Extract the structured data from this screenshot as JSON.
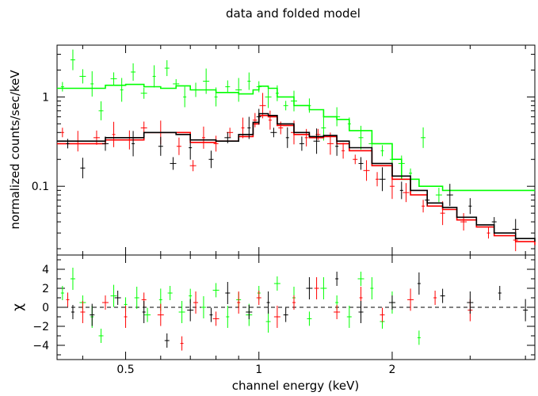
{
  "chart_data": [
    {
      "type": "scatter",
      "title": "data and folded model",
      "ylabel": "normalized counts/sec/keV",
      "xlabel": "",
      "x_scale": "log",
      "y_scale": "log",
      "xlim": [
        0.35,
        4.2
      ],
      "ylim": [
        0.017,
        3.8
      ],
      "y_ticks": [
        {
          "value": 0.1,
          "label": "0.1"
        },
        {
          "value": 1,
          "label": "1"
        }
      ],
      "colors": {
        "black": "#000000",
        "red": "#ff0000",
        "green": "#00ff00"
      },
      "series": [
        {
          "color": "#00ff00",
          "model_x": [
            0.35,
            0.45,
            0.5,
            0.55,
            0.6,
            0.65,
            0.7,
            0.8,
            0.9,
            0.97,
            1.0,
            1.05,
            1.1,
            1.2,
            1.3,
            1.4,
            1.5,
            1.6,
            1.8,
            2.0,
            2.1,
            2.3,
            2.6
          ],
          "model_y": [
            1.25,
            1.35,
            1.38,
            1.3,
            1.25,
            1.33,
            1.2,
            1.12,
            1.08,
            1.2,
            1.32,
            1.25,
            1.0,
            0.8,
            0.72,
            0.6,
            0.56,
            0.42,
            0.3,
            0.2,
            0.12,
            0.1,
            0.09
          ],
          "points": [
            [
              0.36,
              1.3
            ],
            [
              0.38,
              2.6
            ],
            [
              0.4,
              1.7
            ],
            [
              0.42,
              1.4
            ],
            [
              0.44,
              0.7
            ],
            [
              0.47,
              1.6
            ],
            [
              0.49,
              1.2
            ],
            [
              0.52,
              1.9
            ],
            [
              0.55,
              1.1
            ],
            [
              0.58,
              1.7
            ],
            [
              0.62,
              2.1
            ],
            [
              0.65,
              1.4
            ],
            [
              0.68,
              1.0
            ],
            [
              0.72,
              1.2
            ],
            [
              0.76,
              1.5
            ],
            [
              0.8,
              1.0
            ],
            [
              0.85,
              1.3
            ],
            [
              0.9,
              1.2
            ],
            [
              0.95,
              1.5
            ],
            [
              1.0,
              1.3
            ],
            [
              1.05,
              1.0
            ],
            [
              1.1,
              1.1
            ],
            [
              1.15,
              0.8
            ],
            [
              1.2,
              0.9
            ],
            [
              1.3,
              0.8
            ],
            [
              1.4,
              0.45
            ],
            [
              1.5,
              0.6
            ],
            [
              1.6,
              0.5
            ],
            [
              1.7,
              0.35
            ],
            [
              1.8,
              0.3
            ],
            [
              1.9,
              0.25
            ],
            [
              2.0,
              0.2
            ],
            [
              2.1,
              0.18
            ],
            [
              2.2,
              0.14
            ],
            [
              2.35,
              0.35
            ],
            [
              2.55,
              0.08
            ]
          ]
        },
        {
          "color": "#ff0000",
          "model_x": [
            0.35,
            0.45,
            0.55,
            0.65,
            0.7,
            0.8,
            0.9,
            0.97,
            1.0,
            1.05,
            1.1,
            1.2,
            1.3,
            1.4,
            1.5,
            1.6,
            1.8,
            2.0,
            2.2,
            2.4,
            2.6,
            2.8,
            3.1,
            3.4,
            3.8,
            4.2
          ],
          "model_y": [
            0.3,
            0.33,
            0.4,
            0.4,
            0.31,
            0.32,
            0.36,
            0.5,
            0.62,
            0.6,
            0.48,
            0.38,
            0.35,
            0.36,
            0.3,
            0.25,
            0.17,
            0.12,
            0.08,
            0.06,
            0.055,
            0.042,
            0.035,
            0.028,
            0.024,
            0.022
          ],
          "points": [
            [
              0.36,
              0.4
            ],
            [
              0.39,
              0.32
            ],
            [
              0.43,
              0.35
            ],
            [
              0.47,
              0.38
            ],
            [
              0.51,
              0.33
            ],
            [
              0.55,
              0.45
            ],
            [
              0.6,
              0.4
            ],
            [
              0.66,
              0.28
            ],
            [
              0.71,
              0.17
            ],
            [
              0.75,
              0.35
            ],
            [
              0.8,
              0.3
            ],
            [
              0.86,
              0.4
            ],
            [
              0.92,
              0.45
            ],
            [
              0.98,
              0.55
            ],
            [
              1.02,
              0.8
            ],
            [
              1.06,
              0.55
            ],
            [
              1.12,
              0.45
            ],
            [
              1.2,
              0.4
            ],
            [
              1.28,
              0.35
            ],
            [
              1.36,
              0.38
            ],
            [
              1.45,
              0.3
            ],
            [
              1.55,
              0.25
            ],
            [
              1.65,
              0.2
            ],
            [
              1.75,
              0.15
            ],
            [
              1.85,
              0.12
            ],
            [
              2.0,
              0.1
            ],
            [
              2.15,
              0.085
            ],
            [
              2.35,
              0.06
            ],
            [
              2.6,
              0.05
            ],
            [
              2.9,
              0.04
            ],
            [
              3.3,
              0.03
            ],
            [
              3.8,
              0.025
            ]
          ]
        },
        {
          "color": "#000000",
          "model_x": [
            0.35,
            0.45,
            0.55,
            0.65,
            0.7,
            0.8,
            0.9,
            0.97,
            1.0,
            1.05,
            1.1,
            1.2,
            1.3,
            1.4,
            1.5,
            1.6,
            1.8,
            2.0,
            2.2,
            2.4,
            2.6,
            2.8,
            3.1,
            3.4,
            3.8,
            4.2
          ],
          "model_y": [
            0.32,
            0.35,
            0.4,
            0.38,
            0.33,
            0.32,
            0.38,
            0.52,
            0.65,
            0.62,
            0.5,
            0.4,
            0.36,
            0.37,
            0.32,
            0.27,
            0.18,
            0.13,
            0.09,
            0.065,
            0.058,
            0.045,
            0.037,
            0.03,
            0.026,
            0.024
          ],
          "points": [
            [
              0.37,
              0.3
            ],
            [
              0.4,
              0.16
            ],
            [
              0.45,
              0.3
            ],
            [
              0.52,
              0.3
            ],
            [
              0.6,
              0.28
            ],
            [
              0.64,
              0.18
            ],
            [
              0.7,
              0.27
            ],
            [
              0.78,
              0.2
            ],
            [
              0.85,
              0.35
            ],
            [
              0.95,
              0.45
            ],
            [
              1.0,
              0.6
            ],
            [
              1.08,
              0.4
            ],
            [
              1.16,
              0.35
            ],
            [
              1.25,
              0.3
            ],
            [
              1.35,
              0.32
            ],
            [
              1.5,
              0.28
            ],
            [
              1.7,
              0.18
            ],
            [
              1.9,
              0.12
            ],
            [
              2.1,
              0.09
            ],
            [
              2.4,
              0.07
            ],
            [
              2.7,
              0.08
            ],
            [
              3.0,
              0.06
            ],
            [
              3.4,
              0.04
            ],
            [
              3.8,
              0.033
            ]
          ]
        }
      ]
    },
    {
      "type": "scatter",
      "title": "",
      "ylabel": "χ",
      "xlabel": "channel energy (keV)",
      "x_scale": "log",
      "xlim": [
        0.35,
        4.2
      ],
      "ylim": [
        -5.5,
        5.5
      ],
      "x_ticks": [
        {
          "value": 0.5,
          "label": "0.5"
        },
        {
          "value": 1,
          "label": "1"
        },
        {
          "value": 2,
          "label": "2"
        }
      ],
      "y_ticks": [
        {
          "value": -4,
          "label": "−4"
        },
        {
          "value": -2,
          "label": "−2"
        },
        {
          "value": 0,
          "label": "0"
        },
        {
          "value": 2,
          "label": "2"
        },
        {
          "value": 4,
          "label": "4"
        }
      ],
      "zero_line": 0,
      "series": [
        {
          "color": "#00ff00",
          "points": [
            [
              0.36,
              1.5
            ],
            [
              0.38,
              3.0
            ],
            [
              0.4,
              0.5
            ],
            [
              0.42,
              -1.0
            ],
            [
              0.44,
              -3.0
            ],
            [
              0.47,
              1.2
            ],
            [
              0.5,
              0.3
            ],
            [
              0.53,
              1.0
            ],
            [
              0.56,
              -0.8
            ],
            [
              0.6,
              0.8
            ],
            [
              0.63,
              1.5
            ],
            [
              0.67,
              -0.5
            ],
            [
              0.7,
              1.2
            ],
            [
              0.75,
              0.0
            ],
            [
              0.8,
              1.8
            ],
            [
              0.85,
              -1.0
            ],
            [
              0.9,
              0.8
            ],
            [
              0.95,
              -0.8
            ],
            [
              1.0,
              1.5
            ],
            [
              1.05,
              -1.5
            ],
            [
              1.1,
              2.5
            ],
            [
              1.2,
              1.0
            ],
            [
              1.3,
              -1.2
            ],
            [
              1.4,
              2.0
            ],
            [
              1.5,
              0.5
            ],
            [
              1.6,
              -1.0
            ],
            [
              1.7,
              3.0
            ],
            [
              1.8,
              2.0
            ],
            [
              1.9,
              -1.5
            ],
            [
              2.0,
              0.5
            ],
            [
              2.3,
              -3.2
            ]
          ]
        },
        {
          "color": "#ff0000",
          "points": [
            [
              0.37,
              0.8
            ],
            [
              0.4,
              -0.5
            ],
            [
              0.45,
              0.5
            ],
            [
              0.5,
              -1.0
            ],
            [
              0.55,
              0.8
            ],
            [
              0.6,
              -0.8
            ],
            [
              0.67,
              -3.8
            ],
            [
              0.72,
              0.5
            ],
            [
              0.8,
              -1.2
            ],
            [
              0.9,
              0.5
            ],
            [
              1.0,
              1.0
            ],
            [
              1.1,
              -1.0
            ],
            [
              1.2,
              0.5
            ],
            [
              1.35,
              2.0
            ],
            [
              1.5,
              -0.5
            ],
            [
              1.7,
              1.0
            ],
            [
              1.9,
              -0.8
            ],
            [
              2.2,
              0.8
            ],
            [
              2.5,
              1.0
            ],
            [
              3.0,
              -0.3
            ]
          ]
        },
        {
          "color": "#000000",
          "points": [
            [
              0.38,
              -0.5
            ],
            [
              0.42,
              -0.8
            ],
            [
              0.48,
              1.0
            ],
            [
              0.55,
              -0.5
            ],
            [
              0.62,
              -3.5
            ],
            [
              0.7,
              -0.3
            ],
            [
              0.78,
              -0.8
            ],
            [
              0.85,
              1.5
            ],
            [
              0.95,
              -0.5
            ],
            [
              1.05,
              0.5
            ],
            [
              1.15,
              -0.8
            ],
            [
              1.3,
              2.0
            ],
            [
              1.5,
              3.0
            ],
            [
              1.7,
              -0.5
            ],
            [
              2.0,
              0.5
            ],
            [
              2.3,
              2.5
            ],
            [
              2.6,
              1.2
            ],
            [
              3.0,
              0.5
            ],
            [
              3.5,
              1.5
            ],
            [
              4.0,
              -0.3
            ]
          ]
        }
      ]
    }
  ]
}
